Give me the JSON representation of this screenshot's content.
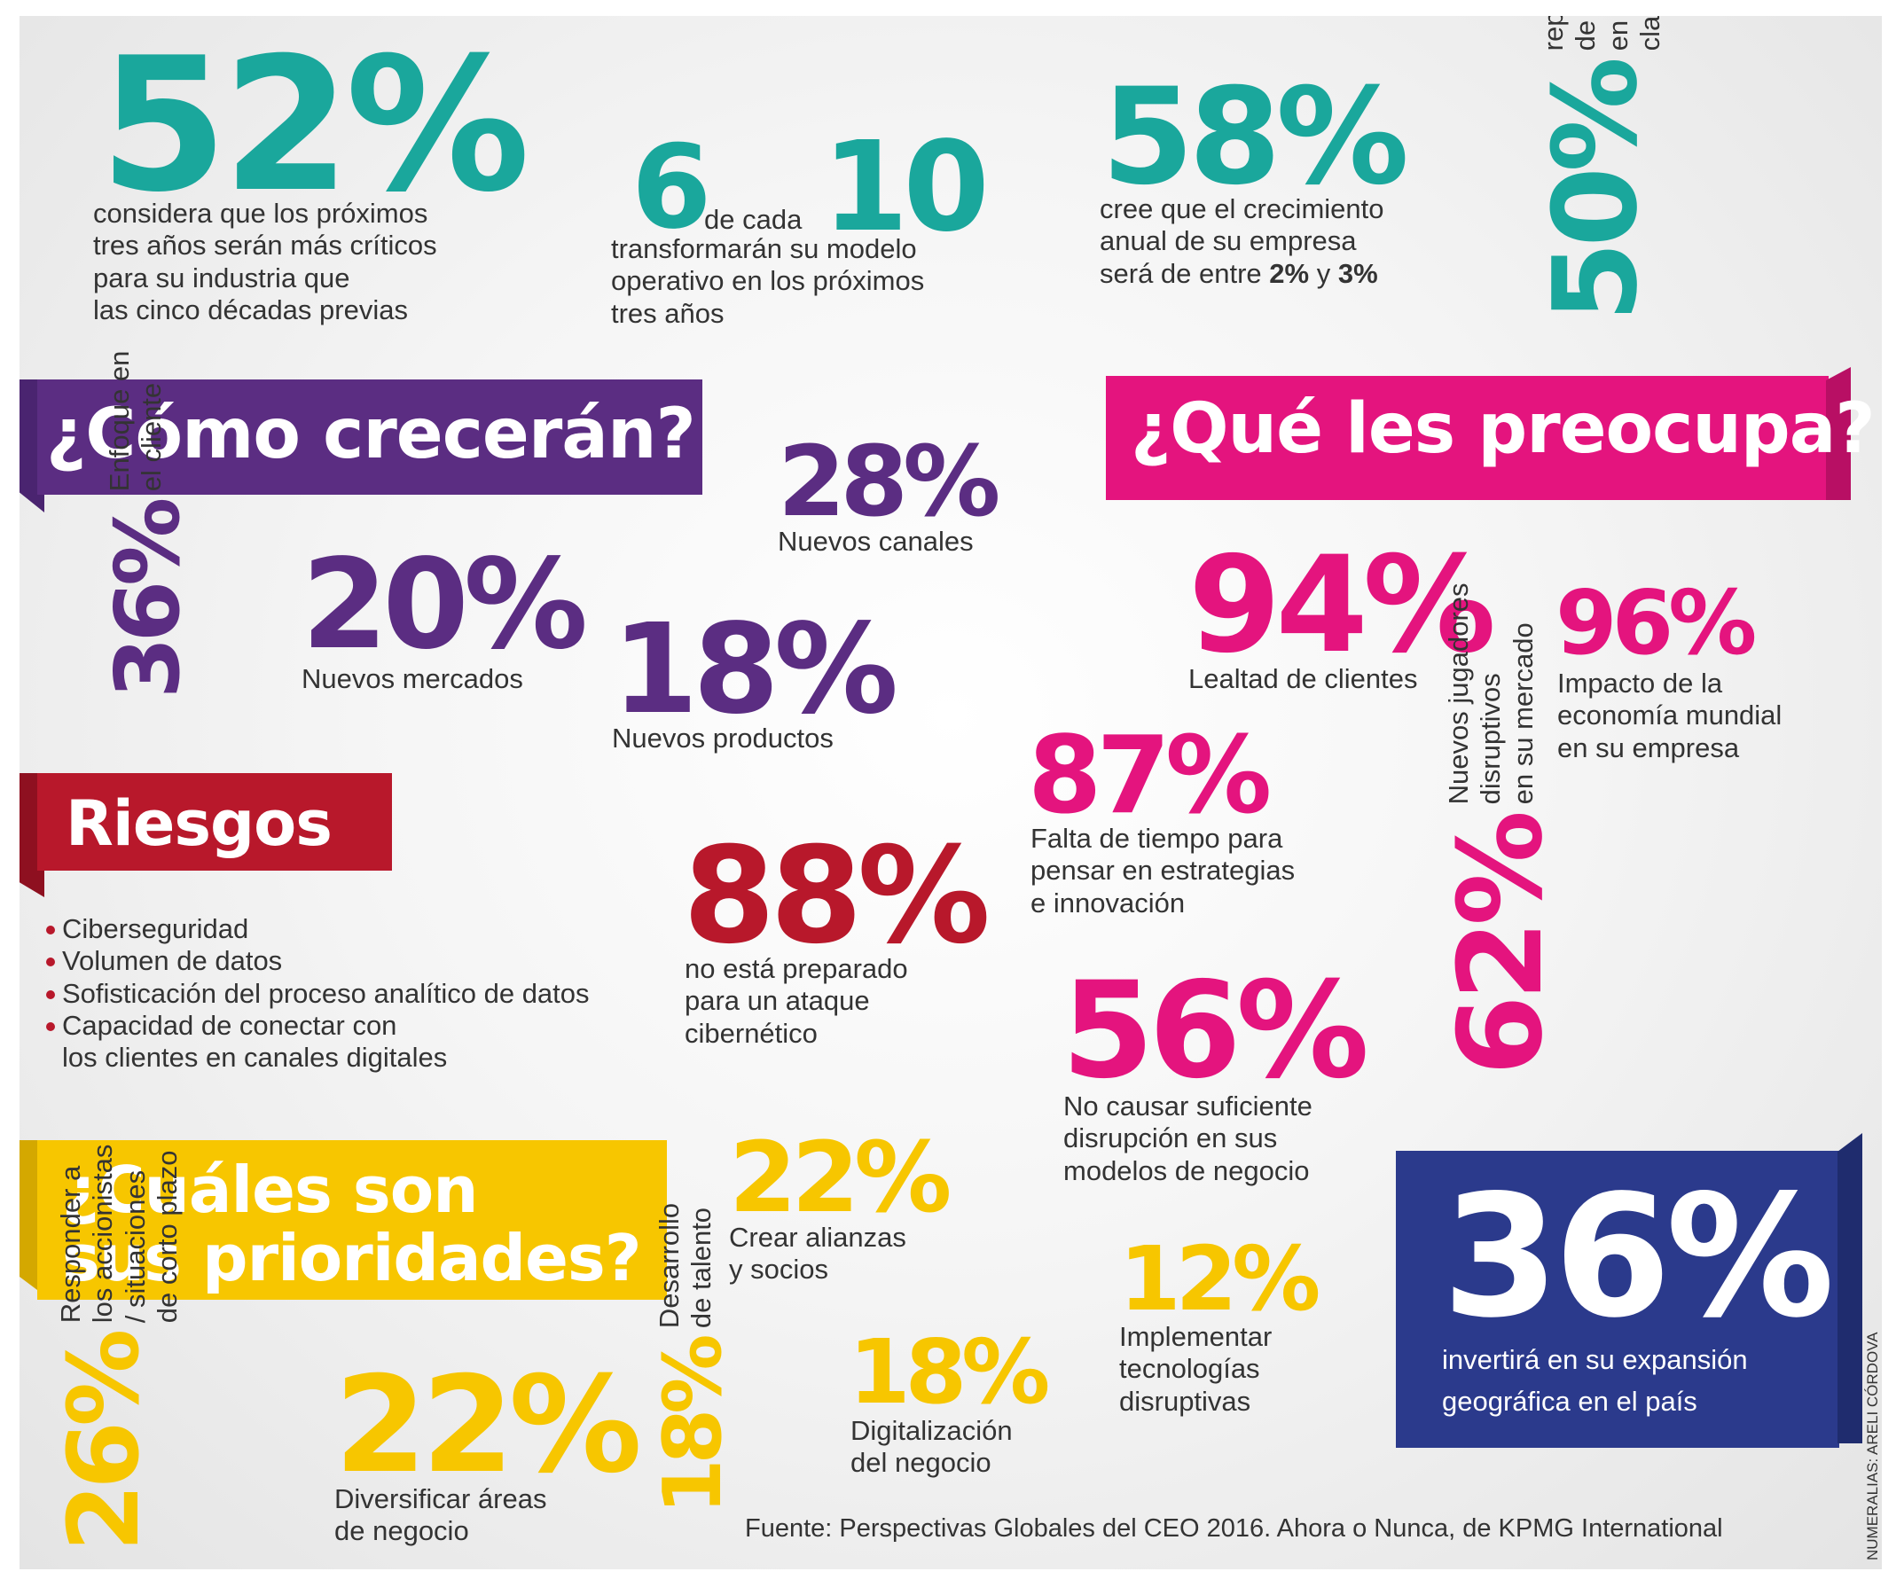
{
  "stats_top": {
    "s52": {
      "value": "52%",
      "text": [
        "considera que los próximos",
        "tres años serán más críticos",
        "para su industria que",
        "las cinco décadas previas"
      ]
    },
    "s6of10": {
      "num1": "6",
      "mid": "de cada",
      "num2": "10",
      "text": [
        "transformarán su modelo",
        "operativo en los próximos",
        "tres años"
      ]
    },
    "s58": {
      "value": "58%",
      "line1": "cree que el crecimiento",
      "line2": "anual de su empresa",
      "line3_pre": "será de entre ",
      "v1": "2%",
      "mid": " y ",
      "v2": "3%"
    },
    "s50": {
      "value": "50%",
      "text": [
        "reporta escasez",
        "de habilidades",
        "en funciones",
        "clave de negocio"
      ]
    }
  },
  "crecer": {
    "title": "¿Cómo crecerán?",
    "s28": {
      "value": "28%",
      "label": "Nuevos canales"
    },
    "s36": {
      "value": "36%",
      "text": [
        "Enfoque en",
        "el cliente"
      ]
    },
    "s20": {
      "value": "20%",
      "label": "Nuevos mercados"
    },
    "s18": {
      "value": "18%",
      "label": "Nuevos productos"
    }
  },
  "preocupa": {
    "title": "¿Qué les preocupa?",
    "s94": {
      "value": "94%",
      "label": "Lealtad de clientes"
    },
    "s96": {
      "value": "96%",
      "text": [
        "Impacto de la",
        "economía mundial",
        "en su empresa"
      ]
    },
    "s87": {
      "value": "87%",
      "text": [
        "Falta de tiempo para",
        "pensar en estrategias",
        "e innovación"
      ]
    },
    "s62": {
      "value": "62%",
      "text": [
        "Nuevos jugadores",
        "disruptivos",
        "en su mercado"
      ]
    },
    "s56": {
      "value": "56%",
      "text": [
        "No causar suficiente",
        "disrupción en sus",
        "modelos de negocio"
      ]
    }
  },
  "riesgos": {
    "title": "Riesgos",
    "items": [
      "Ciberseguridad",
      "Volumen de datos",
      "Sofisticación del proceso analítico de datos",
      "Capacidad de conectar con"
    ],
    "items_cont": "los clientes en canales digitales",
    "s88": {
      "value": "88%",
      "text": [
        "no está preparado",
        "para un ataque",
        "cibernético"
      ]
    }
  },
  "prioridades": {
    "title": [
      "¿Cuáles son",
      "sus prioridades?"
    ],
    "s22a": {
      "value": "22%",
      "text": [
        "Crear alianzas",
        "y socios"
      ]
    },
    "s26": {
      "value": "26%",
      "text": [
        "Responder a",
        "los accionistas",
        "/ situaciones",
        "de corto plazo"
      ]
    },
    "s22b": {
      "value": "22%",
      "text": [
        "Diversificar áreas",
        "de negocio"
      ]
    },
    "s18v": {
      "value": "18%",
      "text": [
        "Desarrollo",
        "de talento"
      ]
    },
    "s18d": {
      "value": "18%",
      "text": [
        "Digitalización",
        "del negocio"
      ]
    },
    "s12": {
      "value": "12%",
      "text": [
        "Implementar",
        "tecnologías",
        "disruptivas"
      ]
    }
  },
  "expansion": {
    "value": "36%",
    "text": [
      "invertirá en su expansión",
      "geográfica en el país"
    ]
  },
  "source": "Fuente: Perspectivas Globales del CEO 2016. Ahora o Nunca, de KPMG International",
  "credit": "NUMERALIAS: ARELI CÓRDOVA",
  "colors": {
    "teal": "#1aa79c",
    "purple": "#5b2d82",
    "magenta": "#e4147e",
    "red": "#b8182b",
    "yellow": "#f7c600",
    "navy": "#2b3a8c"
  }
}
